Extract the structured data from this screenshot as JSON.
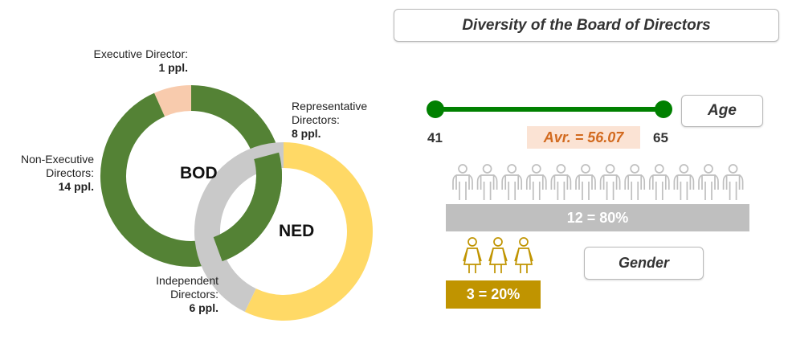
{
  "chart_data": [
    {
      "type": "pie",
      "name": "BOD",
      "center_label": "BOD",
      "slices": [
        {
          "label": "Executive Director:",
          "value_text": "1 ppl.",
          "value": 1,
          "color": "#f8cbad"
        },
        {
          "label": "Non-Executive Directors:",
          "value_text": "14 ppl.",
          "value": 14,
          "color": "#548235"
        }
      ]
    },
    {
      "type": "pie",
      "name": "NED",
      "center_label": "NED",
      "slices": [
        {
          "label": "Representative Directors:",
          "value_text": "8 ppl.",
          "value": 8,
          "color": "#ffd966"
        },
        {
          "label": "Independent Directors:",
          "value_text": "6 ppl.",
          "value": 6,
          "color": "#c9c9c9"
        }
      ]
    },
    {
      "type": "bar",
      "name": "Age",
      "min": 41,
      "max": 65,
      "min_label": "41",
      "max_label": "65",
      "average_label": "Avr. = 56.07",
      "average": 56.07,
      "color": "#008000"
    },
    {
      "type": "bar",
      "name": "Gender",
      "categories": [
        "male",
        "female"
      ],
      "values": [
        12,
        3
      ],
      "percent": [
        80,
        20
      ],
      "labels": [
        "12 = 80%",
        "3 = 20%"
      ],
      "colors": [
        "#bfbfbf",
        "#c09400"
      ]
    }
  ],
  "title": "Diversity of the Board of Directors",
  "age_label": "Age",
  "gender_label": "Gender",
  "exec_label": "Executive Director:",
  "exec_value": "1 ppl.",
  "nonexec_label_1": "Non-Executive",
  "nonexec_label_2": "Directors:",
  "nonexec_value": "14 ppl.",
  "rep_label_1": "Representative",
  "rep_label_2": "Directors:",
  "rep_value": "8 ppl.",
  "ind_label_1": "Independent",
  "ind_label_2": "Directors:",
  "ind_value": "6 ppl.",
  "icon_colors": {
    "male": "#bfbfbf",
    "female": "#c09400"
  }
}
